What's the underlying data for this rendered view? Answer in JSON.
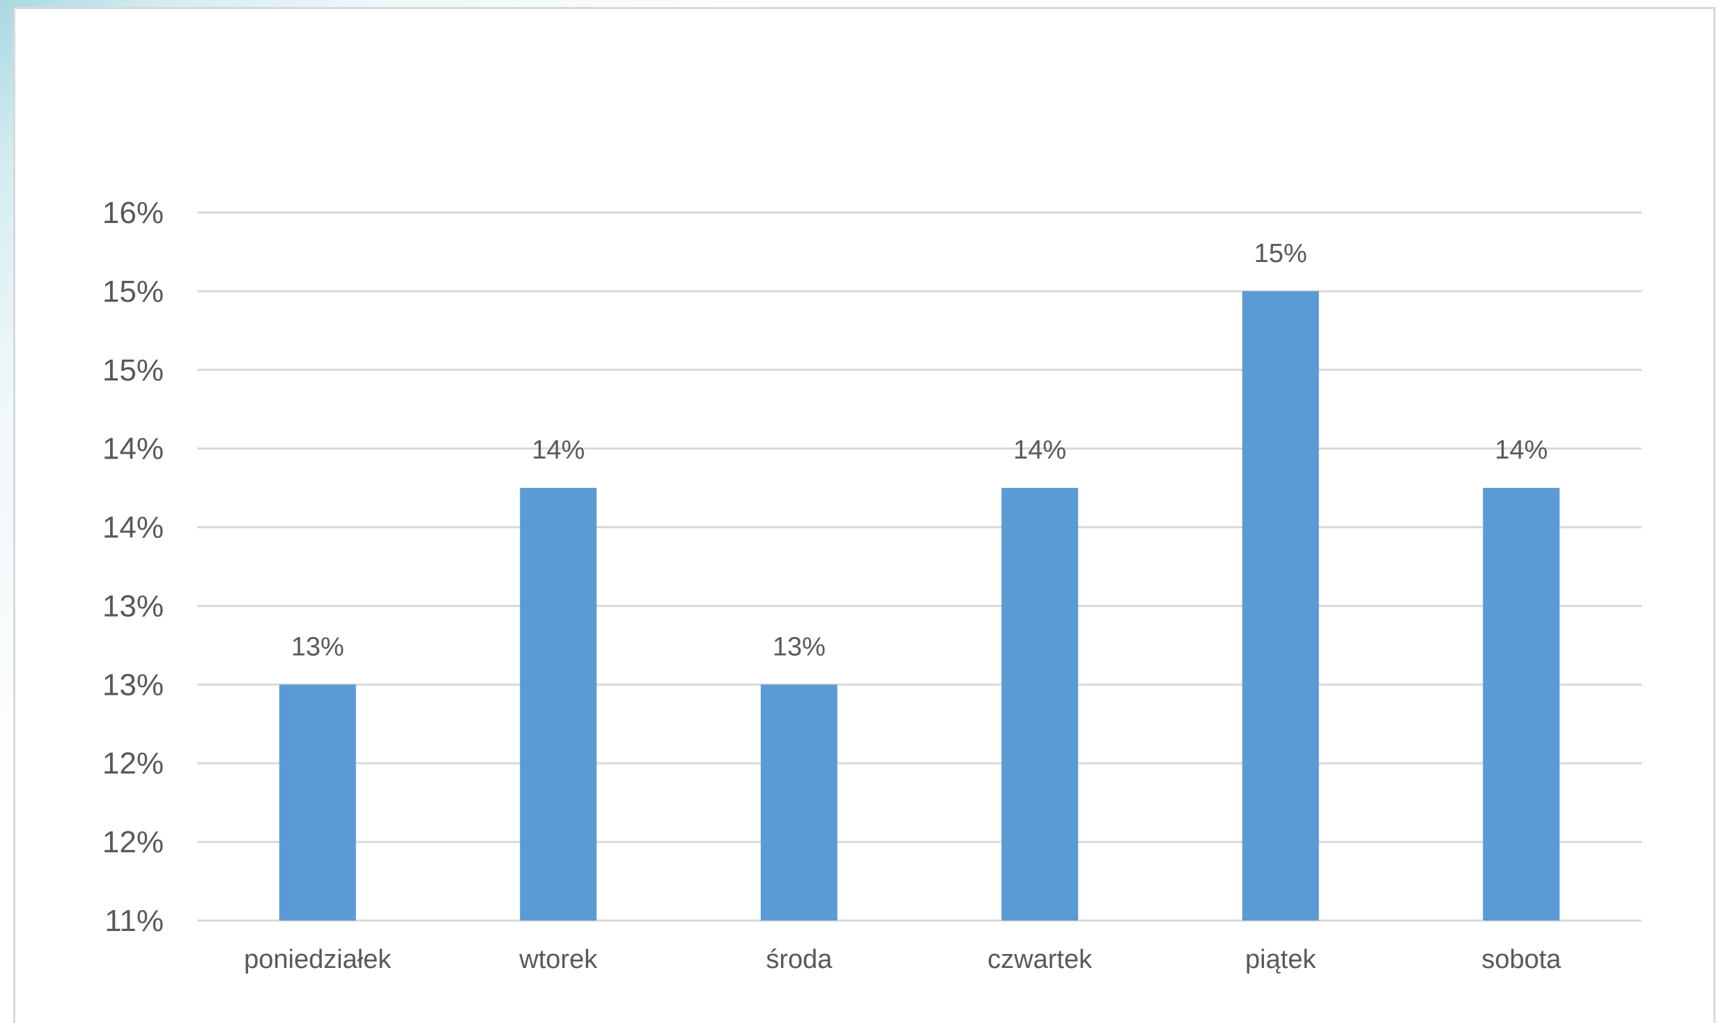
{
  "chart_data": {
    "type": "bar",
    "title": "",
    "xlabel": "",
    "ylabel": "",
    "categories": [
      "poniedziałek",
      "wtorek",
      "środa",
      "czwartek",
      "piątek",
      "sobota"
    ],
    "values": [
      12.5,
      13.75,
      12.5,
      13.75,
      15.0,
      13.75
    ],
    "data_labels": [
      "13%",
      "14%",
      "13%",
      "14%",
      "15%",
      "14%"
    ],
    "ylim": [
      11.0,
      15.5
    ],
    "yticks": [
      11.0,
      11.5,
      12.0,
      12.5,
      13.0,
      13.5,
      14.0,
      14.5,
      15.0,
      15.5
    ],
    "ytick_labels": [
      "11%",
      "12%",
      "12%",
      "13%",
      "13%",
      "14%",
      "14%",
      "15%",
      "15%",
      "16%"
    ],
    "grid": true,
    "legend": "none",
    "colors": {
      "bar": "#5b9bd5",
      "grid": "#d9d9d9",
      "text": "#595959"
    }
  }
}
